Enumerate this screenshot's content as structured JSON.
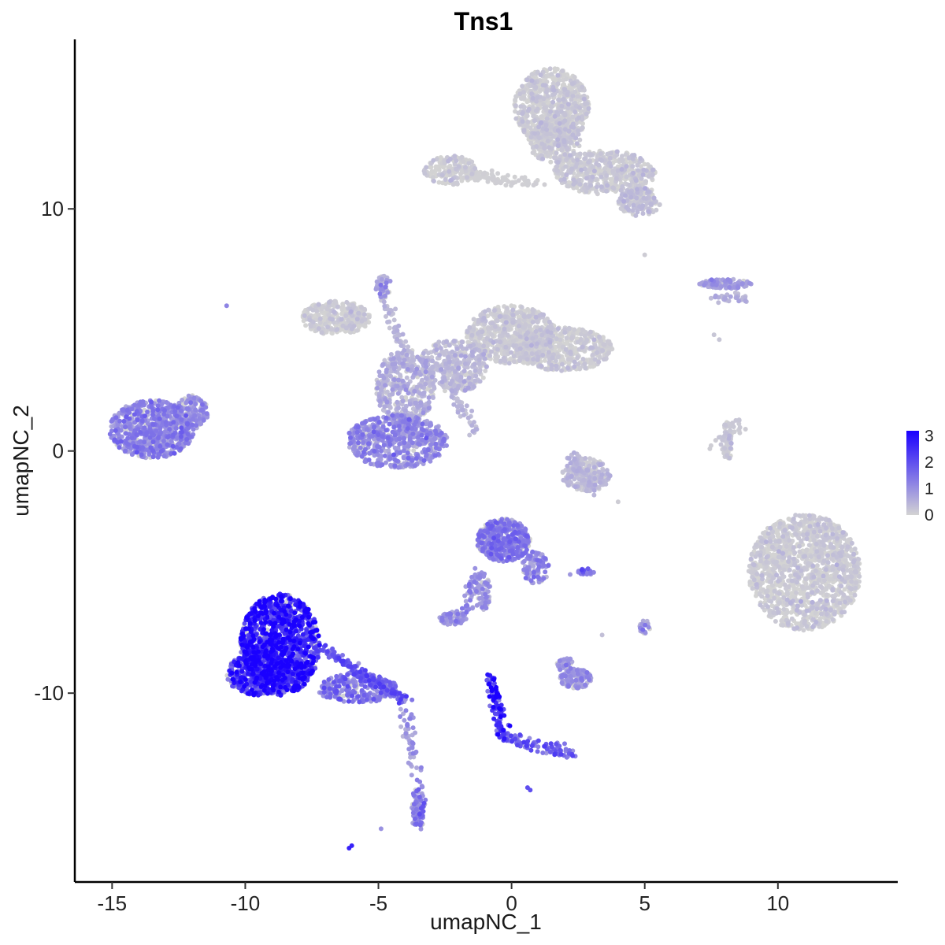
{
  "chart_data": {
    "type": "scatter",
    "title": "Tns1",
    "xlabel": "umapNC_1",
    "ylabel": "umapNC_2",
    "xlim": [
      -16.4,
      14.5
    ],
    "ylim": [
      -17.8,
      17.0
    ],
    "xticks": [
      -15,
      -10,
      -5,
      0,
      5,
      10
    ],
    "xtick_labels": [
      "-15",
      "-10",
      "-5",
      "0",
      "5",
      "10"
    ],
    "yticks": [
      -10,
      0,
      10
    ],
    "ytick_labels": [
      "-10",
      "0",
      "10"
    ],
    "grid": false,
    "legend": {
      "placement": "right",
      "type": "colorbar",
      "min": 0,
      "max": 3.2,
      "ticks": [
        0,
        1,
        2,
        3
      ],
      "tick_labels": [
        "0",
        "1",
        "2",
        "3"
      ],
      "low_color": "#d3d3d3",
      "high_color": "#1a00ff"
    },
    "clusters": [
      {
        "cx": -13.5,
        "cy": 0.9,
        "rx": 1.6,
        "ry": 1.2,
        "n": 700,
        "expr": 1.1
      },
      {
        "cx": -12.0,
        "cy": 1.6,
        "rx": 0.6,
        "ry": 0.7,
        "n": 120,
        "expr": 0.9
      },
      {
        "cx": -6.6,
        "cy": 5.5,
        "rx": 1.3,
        "ry": 0.7,
        "n": 300,
        "expr": 0.05
      },
      {
        "cx": -4.3,
        "cy": 0.4,
        "rx": 1.9,
        "ry": 1.1,
        "n": 600,
        "expr": 1.0
      },
      {
        "cx": -4.0,
        "cy": 2.6,
        "rx": 1.1,
        "ry": 1.6,
        "n": 380,
        "expr": 0.5
      },
      {
        "cx": -2.2,
        "cy": 3.5,
        "rx": 1.3,
        "ry": 1.1,
        "n": 350,
        "expr": 0.3
      },
      {
        "cx": 0.0,
        "cy": 4.8,
        "rx": 1.7,
        "ry": 1.2,
        "n": 700,
        "expr": 0.08
      },
      {
        "cx": 1.9,
        "cy": 4.2,
        "rx": 1.9,
        "ry": 0.9,
        "n": 500,
        "expr": 0.06
      },
      {
        "cx": -4.8,
        "cy": 6.8,
        "rx": 0.3,
        "ry": 0.5,
        "n": 40,
        "expr": 0.8
      },
      {
        "cx": 1.5,
        "cy": 14.2,
        "rx": 1.4,
        "ry": 1.6,
        "n": 700,
        "expr": 0.07
      },
      {
        "cx": 1.6,
        "cy": 12.8,
        "rx": 1.0,
        "ry": 0.9,
        "n": 300,
        "expr": 0.08
      },
      {
        "cx": 3.5,
        "cy": 11.5,
        "rx": 1.9,
        "ry": 0.9,
        "n": 500,
        "expr": 0.1
      },
      {
        "cx": 4.8,
        "cy": 10.3,
        "rx": 0.8,
        "ry": 0.6,
        "n": 150,
        "expr": 0.25
      },
      {
        "cx": -2.3,
        "cy": 11.6,
        "rx": 1.0,
        "ry": 0.6,
        "n": 160,
        "expr": 0.05
      },
      {
        "cx": 11.0,
        "cy": -5.0,
        "rx": 2.1,
        "ry": 2.4,
        "n": 1400,
        "expr": 0.06
      },
      {
        "cx": -8.7,
        "cy": -8.0,
        "rx": 1.5,
        "ry": 2.1,
        "n": 1200,
        "expr": 2.5
      },
      {
        "cx": -9.5,
        "cy": -9.2,
        "rx": 1.2,
        "ry": 0.9,
        "n": 400,
        "expr": 2.3
      },
      {
        "cx": -5.8,
        "cy": -9.8,
        "rx": 1.5,
        "ry": 0.6,
        "n": 250,
        "expr": 1.4
      },
      {
        "cx": -0.3,
        "cy": -3.7,
        "rx": 1.0,
        "ry": 0.9,
        "n": 450,
        "expr": 1.2
      },
      {
        "cx": 0.9,
        "cy": -4.8,
        "rx": 0.5,
        "ry": 0.7,
        "n": 90,
        "expr": 1.0
      },
      {
        "cx": -1.1,
        "cy": -5.8,
        "rx": 0.3,
        "ry": 0.8,
        "n": 60,
        "expr": 0.9
      },
      {
        "cx": -2.2,
        "cy": -6.9,
        "rx": 0.5,
        "ry": 0.3,
        "n": 70,
        "expr": 0.9
      },
      {
        "cx": 2.8,
        "cy": -1.0,
        "rx": 0.9,
        "ry": 0.7,
        "n": 200,
        "expr": 0.3
      },
      {
        "cx": 2.4,
        "cy": -9.4,
        "rx": 0.6,
        "ry": 0.4,
        "n": 140,
        "expr": 0.8
      },
      {
        "cx": 2.0,
        "cy": -8.8,
        "rx": 0.3,
        "ry": 0.3,
        "n": 30,
        "expr": 0.9
      },
      {
        "cx": -3.5,
        "cy": -14.8,
        "rx": 0.3,
        "ry": 0.9,
        "n": 80,
        "expr": 1.3
      },
      {
        "cx": 8.0,
        "cy": 6.9,
        "rx": 1.0,
        "ry": 0.2,
        "n": 110,
        "expr": 0.7
      },
      {
        "cx": 8.1,
        "cy": 0.4,
        "rx": 0.2,
        "ry": 0.8,
        "n": 50,
        "expr": 0.1
      },
      {
        "cx": 5.0,
        "cy": -7.3,
        "rx": 0.2,
        "ry": 0.3,
        "n": 20,
        "expr": 1.0
      },
      {
        "cx": 2.8,
        "cy": -5.0,
        "rx": 0.3,
        "ry": 0.15,
        "n": 15,
        "expr": 1.5
      }
    ],
    "streaks": [
      {
        "x1": -2.0,
        "y1": 11.5,
        "x2": 1.0,
        "y2": 11.0,
        "n": 100,
        "expr": 0.05
      },
      {
        "x1": -4.8,
        "y1": 6.5,
        "x2": -3.8,
        "y2": 3.5,
        "n": 60,
        "expr": 0.4
      },
      {
        "x1": -2.5,
        "y1": 3.0,
        "x2": -1.3,
        "y2": 0.8,
        "n": 50,
        "expr": 0.4
      },
      {
        "x1": -7.1,
        "y1": -8.2,
        "x2": -4.0,
        "y2": -10.3,
        "n": 170,
        "expr": 1.6
      },
      {
        "x1": -4.0,
        "y1": -10.6,
        "x2": -3.5,
        "y2": -13.8,
        "n": 50,
        "expr": 0.9
      },
      {
        "x1": -0.8,
        "y1": -9.3,
        "x2": -0.3,
        "y2": -11.8,
        "n": 90,
        "expr": 2.4
      },
      {
        "x1": -0.3,
        "y1": -11.8,
        "x2": 2.5,
        "y2": -12.6,
        "n": 90,
        "expr": 1.6
      },
      {
        "x1": -1.3,
        "y1": -5.0,
        "x2": -1.8,
        "y2": -6.8,
        "n": 40,
        "expr": 1.0
      },
      {
        "x1": 7.7,
        "y1": 0.2,
        "x2": 8.5,
        "y2": 1.2,
        "n": 40,
        "expr": 0.15
      },
      {
        "x1": 2.3,
        "y1": -0.2,
        "x2": 3.0,
        "y2": -1.6,
        "n": 40,
        "expr": 0.4
      },
      {
        "x1": 7.6,
        "y1": 6.4,
        "x2": 8.8,
        "y2": 6.2,
        "n": 30,
        "expr": 0.5
      }
    ],
    "isolated_points": [
      {
        "x": -10.7,
        "y": 6.0,
        "expr": 1.2
      },
      {
        "x": -6.1,
        "y": -16.4,
        "expr": 2.7
      },
      {
        "x": -6.0,
        "y": -16.3,
        "expr": 2.7
      },
      {
        "x": -4.9,
        "y": -15.6,
        "expr": 1.0
      },
      {
        "x": 0.6,
        "y": -13.9,
        "expr": 2.0
      },
      {
        "x": 0.7,
        "y": -14.0,
        "expr": 2.0
      },
      {
        "x": 5.0,
        "y": 8.1,
        "expr": 0.1
      },
      {
        "x": 4.0,
        "y": -2.1,
        "expr": 0.1
      },
      {
        "x": 3.4,
        "y": -7.6,
        "expr": 0.3
      },
      {
        "x": 2.2,
        "y": -5.1,
        "expr": 0.9
      },
      {
        "x": 7.6,
        "y": 4.8,
        "expr": 0.2
      },
      {
        "x": 7.8,
        "y": 4.6,
        "expr": 0.2
      }
    ]
  }
}
